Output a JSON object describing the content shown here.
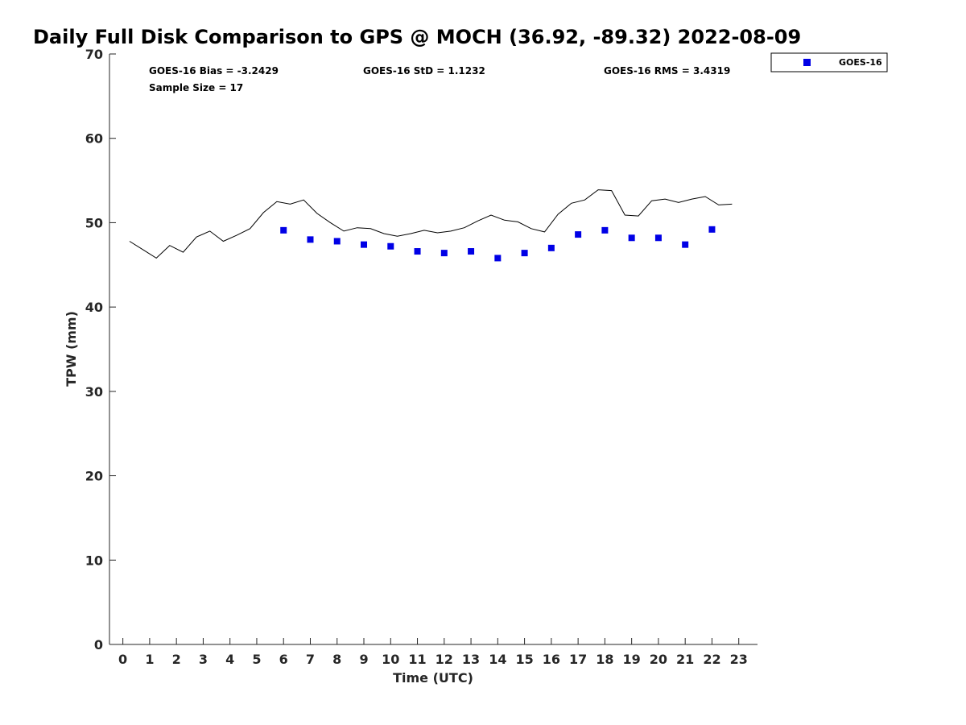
{
  "chart_data": {
    "type": "scatter",
    "title": "Daily Full Disk Comparison to GPS @ MOCH (36.92, -89.32) 2022-08-09",
    "xlabel": "Time (UTC)",
    "ylabel": "TPW (mm)",
    "xlim": [
      -0.5,
      23.7
    ],
    "ylim": [
      0,
      70
    ],
    "xticks": [
      0,
      1,
      2,
      3,
      4,
      5,
      6,
      7,
      8,
      9,
      10,
      11,
      12,
      13,
      14,
      15,
      16,
      17,
      18,
      19,
      20,
      21,
      22,
      23
    ],
    "yticks": [
      0,
      10,
      20,
      30,
      40,
      50,
      60,
      70
    ],
    "grid": false,
    "legend_position": "top-right outside",
    "stats": {
      "bias": "GOES-16 Bias = -3.2429",
      "std": "GOES-16 StD = 1.1232",
      "rms": "GOES-16 RMS = 3.4319",
      "sample": "Sample Size = 17"
    },
    "series": [
      {
        "type": "line",
        "color": "#000000",
        "x": [
          0.25,
          0.75,
          1.25,
          1.75,
          2.25,
          2.75,
          3.25,
          3.75,
          4.25,
          4.75,
          5.25,
          5.75,
          6.25,
          6.75,
          7.25,
          7.75,
          8.25,
          8.75,
          9.25,
          9.75,
          10.25,
          10.75,
          11.25,
          11.75,
          12.25,
          12.75,
          13.25,
          13.75,
          14.25,
          14.75,
          15.25,
          15.75,
          16.25,
          16.75,
          17.25,
          17.75,
          18.25,
          18.75,
          19.25,
          19.75,
          20.25,
          20.75,
          21.25,
          21.75,
          22.25,
          22.75
        ],
        "values": [
          47.8,
          46.8,
          45.8,
          47.3,
          46.5,
          48.3,
          49.0,
          47.8,
          48.5,
          49.3,
          51.2,
          52.5,
          52.2,
          52.7,
          51.1,
          50.0,
          49.0,
          49.4,
          49.3,
          48.7,
          48.4,
          48.7,
          49.1,
          48.8,
          49.0,
          49.4,
          50.2,
          50.9,
          50.3,
          50.1,
          49.3,
          48.9,
          51.0,
          52.3,
          52.7,
          53.9,
          53.8,
          50.9,
          50.8,
          52.6,
          52.8,
          52.4,
          52.8,
          53.1,
          52.1,
          52.2
        ]
      },
      {
        "type": "scatter",
        "name": "GOES-16",
        "color": "#0000e6",
        "x": [
          6,
          7,
          8,
          9,
          10,
          11,
          12,
          13,
          14,
          15,
          16,
          17,
          18,
          19,
          20,
          21,
          22
        ],
        "values": [
          49.1,
          48.0,
          47.8,
          47.4,
          47.2,
          46.6,
          46.4,
          46.6,
          45.8,
          46.4,
          47.0,
          48.6,
          49.1,
          48.2,
          48.2,
          47.4,
          49.2
        ]
      }
    ]
  }
}
